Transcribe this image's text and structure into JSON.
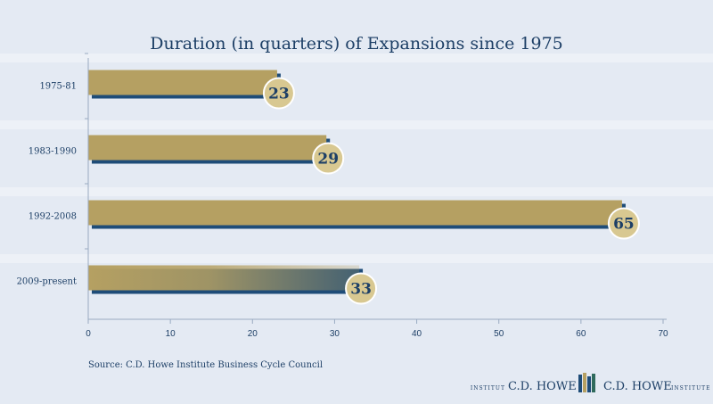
{
  "chart_data": {
    "type": "bar",
    "orientation": "horizontal",
    "title": "Duration (in quarters) of Expansions since 1975",
    "categories": [
      "1975-81",
      "1983-1990",
      "1992-2008",
      "2009-present"
    ],
    "values": [
      23,
      29,
      65,
      33
    ],
    "value_labels": [
      "23",
      "29",
      "65",
      "33"
    ],
    "xlim": [
      0,
      70
    ],
    "xticks": [
      "0",
      "10",
      "20",
      "30",
      "40",
      "50",
      "60",
      "70"
    ],
    "xlabel": "",
    "ylabel": "",
    "grid": false,
    "legend": "none"
  },
  "source": "Source: C.D. Howe Institute Business Cycle Council",
  "logo": {
    "fr_small": "INSTITUT",
    "fr_name": "C.D. HOWE",
    "en_name": "C.D. HOWE",
    "en_small": "INSTITUTE"
  },
  "colors": {
    "bar": "#b5a062",
    "bar_shadow": "#1e4c78",
    "badge": "#d8c891",
    "text": "#1d3f66",
    "background": "#e4eaf3"
  }
}
